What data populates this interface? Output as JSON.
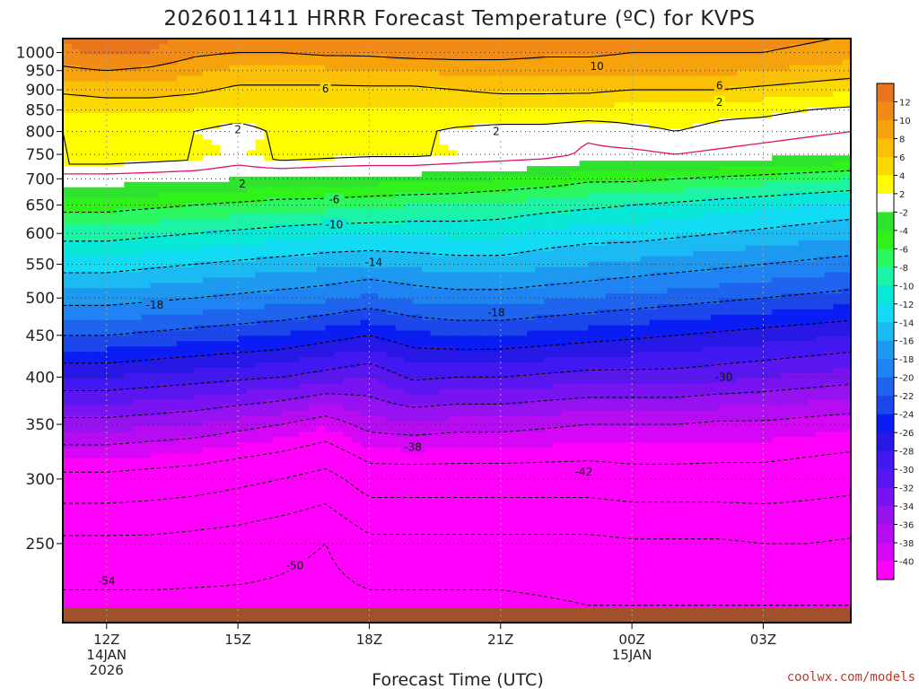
{
  "chart_data": {
    "type": "heatmap",
    "title": "2026011411 HRRR Forecast Temperature (ºC) for KVPS",
    "xlabel": "Forecast Time (UTC)",
    "ylabel": "",
    "x_ticks": [
      {
        "hour": 1,
        "label": "12Z",
        "sub": [
          "14JAN",
          "2026"
        ]
      },
      {
        "hour": 4,
        "label": "15Z",
        "sub": []
      },
      {
        "hour": 7,
        "label": "18Z",
        "sub": []
      },
      {
        "hour": 10,
        "label": "21Z",
        "sub": []
      },
      {
        "hour": 13,
        "label": "00Z",
        "sub": [
          "15JAN"
        ]
      },
      {
        "hour": 16,
        "label": "03Z",
        "sub": []
      }
    ],
    "xlim": [
      0,
      18
    ],
    "ylim_hpa": [
      1040,
      200
    ],
    "y_ticks": [
      1000,
      950,
      900,
      850,
      800,
      750,
      700,
      650,
      600,
      550,
      500,
      450,
      400,
      350,
      300,
      250
    ],
    "colorbar": {
      "labels": [
        "12",
        "10",
        "8",
        "6",
        "4",
        "2",
        "-2",
        "-4",
        "-6",
        "-8",
        "-10",
        "-12",
        "-14",
        "-16",
        "-18",
        "-20",
        "-22",
        "-24",
        "-26",
        "-28",
        "-30",
        "-32",
        "-34",
        "-36",
        "-38",
        "-40"
      ],
      "colors": [
        "#e8741e",
        "#f28a17",
        "#f6a20c",
        "#fabf07",
        "#fbd800",
        "#fffc00",
        "#ffffff",
        "#2ee32e",
        "#31f11a",
        "#2bf760",
        "#1cf3a5",
        "#09e7d7",
        "#12dbf3",
        "#1cbaf2",
        "#1d9af0",
        "#2083f3",
        "#1f64ef",
        "#1c47ea",
        "#0a1df3",
        "#2818e6",
        "#4118f1",
        "#5a16f0",
        "#7913f2",
        "#9612f0",
        "#b50cf2",
        "#d606f7",
        "#ff00fb"
      ]
    },
    "profile_levels_hpa": [
      1000,
      950,
      900,
      850,
      800,
      750,
      700,
      650,
      600,
      550,
      500,
      450,
      400,
      350,
      300,
      250,
      210
    ],
    "series": [
      {
        "hour": 0,
        "temps": [
          11.5,
          9.5,
          6.5,
          4.0,
          2.0,
          4.0,
          -1.0,
          -5.0,
          -9.0,
          -13.0,
          -17.0,
          -22.0,
          -28.0,
          -35.0,
          -43.0,
          -51.0,
          -55.0
        ]
      },
      {
        "hour": 1,
        "temps": [
          12.5,
          10.0,
          7.0,
          4.5,
          2.5,
          4.0,
          -1.0,
          -5.0,
          -9.0,
          -13.0,
          -17.0,
          -22.0,
          -28.0,
          -35.0,
          -43.0,
          -51.0,
          -55.0
        ]
      },
      {
        "hour": 2,
        "temps": [
          12.0,
          9.5,
          7.0,
          4.5,
          2.5,
          3.5,
          -1.2,
          -5.5,
          -9.5,
          -13.5,
          -17.5,
          -22.5,
          -28.5,
          -35.5,
          -43.5,
          -51.0,
          -55.0
        ]
      },
      {
        "hour": 3,
        "temps": [
          10.5,
          8.5,
          6.5,
          4.0,
          2.0,
          3.0,
          -1.5,
          -6.0,
          -10.0,
          -14.0,
          -18.0,
          -23.0,
          -29.0,
          -36.0,
          -44.0,
          -51.5,
          -55.0
        ]
      },
      {
        "hour": 4,
        "temps": [
          10.0,
          7.5,
          5.5,
          3.5,
          1.0,
          1.5,
          -2.0,
          -6.5,
          -10.5,
          -14.5,
          -18.5,
          -23.5,
          -29.5,
          -37.0,
          -45.0,
          -52.0,
          -55.0
        ]
      },
      {
        "hour": 5,
        "temps": [
          10.0,
          7.5,
          5.5,
          3.5,
          2.5,
          3.5,
          -2.5,
          -7.0,
          -11.0,
          -15.0,
          -19.0,
          -24.0,
          -30.0,
          -38.0,
          -46.0,
          -53.0,
          -55.0
        ]
      },
      {
        "hour": 6,
        "temps": [
          10.5,
          7.5,
          5.5,
          4.0,
          2.5,
          3.0,
          -3.0,
          -7.0,
          -11.5,
          -15.5,
          -19.5,
          -25.0,
          -31.0,
          -39.5,
          -47.5,
          -54.0,
          -55.5
        ]
      },
      {
        "hour": 7,
        "temps": [
          10.5,
          8.0,
          5.5,
          4.0,
          2.5,
          2.5,
          -3.0,
          -7.5,
          -11.5,
          -16.0,
          -20.5,
          -26.0,
          -32.0,
          -37.0,
          -44.0,
          -51.0,
          -55.0
        ]
      },
      {
        "hour": 8,
        "temps": [
          11.0,
          8.0,
          5.5,
          4.0,
          2.5,
          2.5,
          -3.0,
          -8.0,
          -11.5,
          -15.5,
          -19.5,
          -24.5,
          -29.5,
          -36.5,
          -44.0,
          -51.0,
          -55.0
        ]
      },
      {
        "hour": 9,
        "temps": [
          11.0,
          8.5,
          6.0,
          4.0,
          1.5,
          2.0,
          -3.5,
          -8.0,
          -11.5,
          -15.0,
          -19.0,
          -24.0,
          -30.0,
          -37.0,
          -44.0,
          -51.0,
          -55.0
        ]
      },
      {
        "hour": 10,
        "temps": [
          11.0,
          8.5,
          6.5,
          4.0,
          1.0,
          1.5,
          -4.0,
          -8.5,
          -11.5,
          -15.0,
          -19.0,
          -24.0,
          -30.0,
          -37.0,
          -44.0,
          -51.0,
          -55.0
        ]
      },
      {
        "hour": 11,
        "temps": [
          10.5,
          8.5,
          6.5,
          4.0,
          1.0,
          1.0,
          -4.5,
          -9.0,
          -12.5,
          -15.5,
          -19.5,
          -24.5,
          -30.5,
          -37.5,
          -44.0,
          -51.0,
          -54.5
        ]
      },
      {
        "hour": 12,
        "temps": [
          10.5,
          8.5,
          6.5,
          3.5,
          0.5,
          -0.5,
          -5.5,
          -9.5,
          -13.0,
          -16.0,
          -20.0,
          -25.0,
          -31.0,
          -38.0,
          -44.0,
          -51.0,
          -54.0
        ]
      },
      {
        "hour": 13,
        "temps": [
          10.0,
          8.5,
          6.0,
          3.0,
          1.5,
          -0.5,
          -5.5,
          -10.0,
          -13.0,
          -16.5,
          -20.5,
          -25.5,
          -31.0,
          -38.0,
          -43.5,
          -50.5,
          -54.0
        ]
      },
      {
        "hour": 14,
        "temps": [
          10.0,
          8.5,
          6.0,
          3.0,
          2.0,
          0.0,
          -6.0,
          -10.5,
          -13.5,
          -17.0,
          -21.0,
          -26.0,
          -31.0,
          -38.0,
          -43.5,
          -50.5,
          -54.0
        ]
      },
      {
        "hour": 15,
        "temps": [
          10.0,
          8.5,
          6.0,
          2.5,
          1.5,
          -0.5,
          -6.5,
          -11.0,
          -14.0,
          -17.5,
          -21.5,
          -26.5,
          -31.5,
          -38.5,
          -43.5,
          -50.5,
          -54.0
        ]
      },
      {
        "hour": 16,
        "temps": [
          10.0,
          8.0,
          5.5,
          2.5,
          1.0,
          -1.0,
          -7.0,
          -11.5,
          -14.5,
          -18.0,
          -22.0,
          -27.0,
          -32.0,
          -38.5,
          -43.5,
          -50.0,
          -54.0
        ]
      },
      {
        "hour": 17,
        "temps": [
          9.5,
          7.5,
          5.0,
          2.0,
          0.5,
          -1.5,
          -7.5,
          -12.0,
          -15.0,
          -18.5,
          -22.5,
          -27.5,
          -32.5,
          -39.0,
          -44.0,
          -50.0,
          -54.0
        ]
      },
      {
        "hour": 18,
        "temps": [
          9.0,
          7.0,
          4.5,
          1.5,
          0.0,
          -2.0,
          -8.0,
          -12.5,
          -15.5,
          -19.0,
          -23.0,
          -28.0,
          -33.0,
          -39.5,
          -44.5,
          -50.5,
          -54.0
        ]
      }
    ],
    "contour_labels": [
      {
        "text": "-54",
        "hour": 1.0,
        "hpa": 225
      },
      {
        "text": "-50",
        "hour": 5.3,
        "hpa": 235
      },
      {
        "text": "-42",
        "hour": 11.9,
        "hpa": 306
      },
      {
        "text": "-38",
        "hour": 8.0,
        "hpa": 328
      },
      {
        "text": "-30",
        "hour": 15.1,
        "hpa": 400
      },
      {
        "text": "-18",
        "hour": 2.1,
        "hpa": 490
      },
      {
        "text": "-18",
        "hour": 9.9,
        "hpa": 480
      },
      {
        "text": "-14",
        "hour": 7.1,
        "hpa": 553
      },
      {
        "text": "-10",
        "hour": 6.2,
        "hpa": 615
      },
      {
        "text": "-6",
        "hour": 6.2,
        "hpa": 660
      },
      {
        "text": "2",
        "hour": 4.1,
        "hpa": 690
      },
      {
        "text": "2",
        "hour": 4.0,
        "hpa": 804
      },
      {
        "text": "2",
        "hour": 9.9,
        "hpa": 800
      },
      {
        "text": "2",
        "hour": 15.0,
        "hpa": 869
      },
      {
        "text": "6",
        "hour": 6.0,
        "hpa": 903
      },
      {
        "text": "6",
        "hour": 15.0,
        "hpa": 910
      },
      {
        "text": "10",
        "hour": 12.2,
        "hpa": 961
      }
    ],
    "contour_levels": [
      10,
      6,
      2,
      -6,
      -10,
      -14,
      -18,
      -22,
      -26,
      -30,
      -34,
      -38,
      -42,
      -46,
      -50,
      -54
    ]
  },
  "credit": "coolwx.com/models"
}
